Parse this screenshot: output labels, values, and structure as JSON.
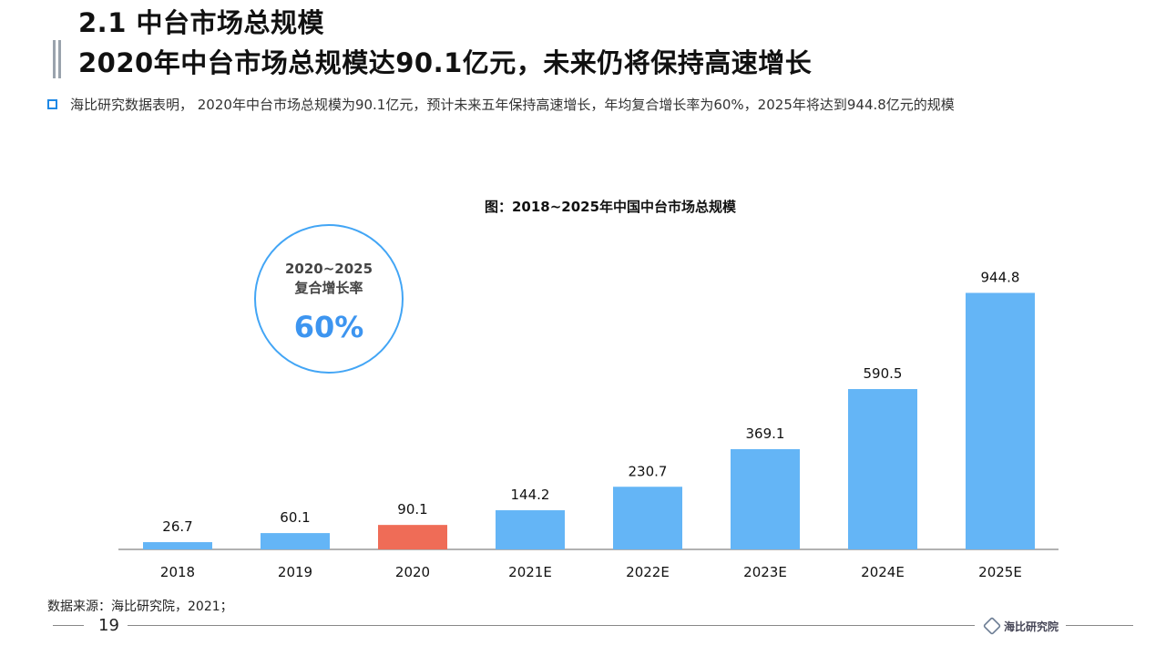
{
  "header": {
    "title_line1": "2.1 中台市场总规模",
    "title_line2": "2020年中台市场总规模达90.1亿元，未来仍将保持高速增长"
  },
  "summary": "海比研究数据表明， 2020年中台市场总规模为90.1亿元，预计未来五年保持高速增长，年均复合增长率为60%，2025年将达到944.8亿元的规模",
  "cagr": {
    "period": "2020~2025",
    "label": "复合增长率",
    "value": "60%"
  },
  "chart_data": {
    "type": "bar",
    "title": "图：2018~2025年中国中台市场总规模",
    "categories": [
      "2018",
      "2019",
      "2020",
      "2021E",
      "2022E",
      "2023E",
      "2024E",
      "2025E"
    ],
    "values": [
      26.7,
      60.1,
      90.1,
      144.2,
      230.7,
      369.1,
      590.5,
      944.8
    ],
    "data_labels": [
      "26.7",
      "60.1",
      "90.1",
      "144.2",
      "230.7",
      "369.1",
      "590.5",
      "944.8"
    ],
    "highlight_index": 2,
    "ylim": [
      0,
      1000
    ],
    "grid": false,
    "colors": {
      "bar": "#64b5f6",
      "highlight": "#ef6c57",
      "axis": "#999999"
    }
  },
  "source": "数据来源：海比研究院，2021；",
  "page_number": "19",
  "footer_logo_text": "海比研究院"
}
